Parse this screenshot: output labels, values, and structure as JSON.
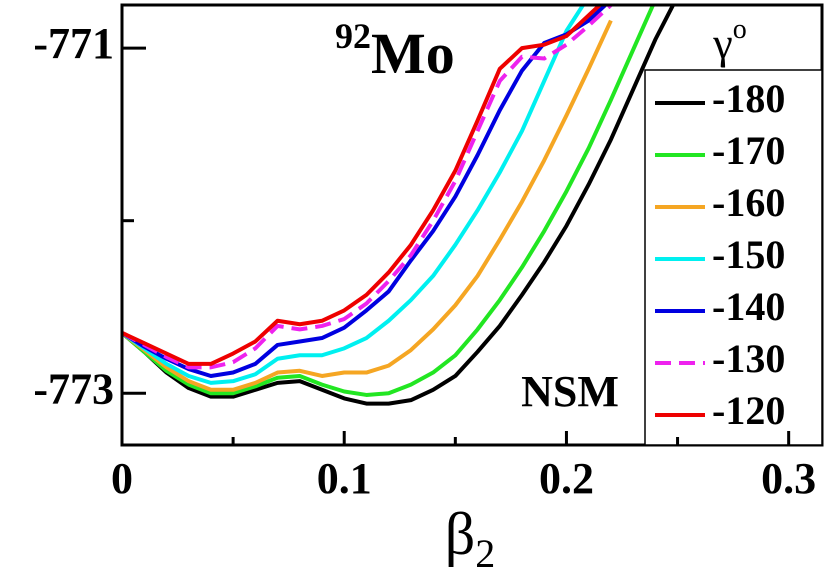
{
  "chart_data": {
    "type": "line",
    "xlabel": {
      "symbol": "β",
      "subscript": "2"
    },
    "legend_title": {
      "symbol": "γ",
      "superscript": "o"
    },
    "annotations": [
      {
        "mass": "92",
        "element": "Mo"
      },
      {
        "text": "NSM"
      }
    ],
    "x": [
      0,
      0.01,
      0.02,
      0.03,
      0.04,
      0.05,
      0.06,
      0.07,
      0.08,
      0.09,
      0.1,
      0.11,
      0.12,
      0.13,
      0.14,
      0.15,
      0.16,
      0.17,
      0.18,
      0.19,
      0.2,
      0.21,
      0.22,
      0.23,
      0.24,
      0.25
    ],
    "series": [
      {
        "name": "-180",
        "color": "#000000",
        "dash": false,
        "values": [
          -772.65,
          -772.76,
          -772.88,
          -772.97,
          -773.02,
          -773.02,
          -772.98,
          -772.94,
          -772.93,
          -772.98,
          -773.03,
          -773.06,
          -773.06,
          -773.04,
          -772.98,
          -772.9,
          -772.76,
          -772.61,
          -772.43,
          -772.24,
          -772.03,
          -771.79,
          -771.53,
          -771.24,
          -770.95,
          -770.7
        ]
      },
      {
        "name": "-170",
        "color": "#22e622",
        "dash": false,
        "values": [
          -772.65,
          -772.76,
          -772.87,
          -772.95,
          -773.0,
          -773.0,
          -772.96,
          -772.91,
          -772.9,
          -772.95,
          -772.99,
          -773.01,
          -773.0,
          -772.95,
          -772.88,
          -772.78,
          -772.63,
          -772.46,
          -772.27,
          -772.06,
          -771.83,
          -771.58,
          -771.3,
          -771.01,
          -770.72,
          null
        ]
      },
      {
        "name": "-160",
        "color": "#f5a623",
        "dash": false,
        "values": [
          -772.65,
          -772.75,
          -772.85,
          -772.93,
          -772.98,
          -772.98,
          -772.94,
          -772.88,
          -772.87,
          -772.9,
          -772.88,
          -772.88,
          -772.84,
          -772.75,
          -772.63,
          -772.49,
          -772.32,
          -772.11,
          -771.89,
          -771.65,
          -771.39,
          -771.12,
          -770.84,
          null,
          null,
          null
        ]
      },
      {
        "name": "-150",
        "color": "#00f0f0",
        "dash": false,
        "values": [
          -772.65,
          -772.74,
          -772.83,
          -772.9,
          -772.94,
          -772.93,
          -772.89,
          -772.8,
          -772.78,
          -772.78,
          -772.74,
          -772.68,
          -772.58,
          -772.46,
          -772.32,
          -772.14,
          -771.94,
          -771.72,
          -771.48,
          -771.19,
          -770.9,
          -770.7,
          null,
          null,
          null,
          null
        ]
      },
      {
        "name": "-140",
        "color": "#0000e0",
        "dash": false,
        "values": [
          -772.65,
          -772.73,
          -772.8,
          -772.86,
          -772.9,
          -772.88,
          -772.83,
          -772.72,
          -772.7,
          -772.68,
          -772.62,
          -772.52,
          -772.41,
          -772.23,
          -772.06,
          -771.86,
          -771.62,
          -771.36,
          -771.13,
          -770.97,
          -770.92,
          -770.84,
          -770.72,
          null,
          null,
          null
        ]
      },
      {
        "name": "-130",
        "color": "#ee22ee",
        "dash": true,
        "values": [
          -772.65,
          -772.72,
          -772.79,
          -772.85,
          -772.85,
          -772.82,
          -772.74,
          -772.61,
          -772.63,
          -772.61,
          -772.57,
          -772.48,
          -772.35,
          -772.2,
          -772.0,
          -771.77,
          -771.48,
          -771.19,
          -771.05,
          -771.06,
          -770.98,
          -770.87,
          -770.75,
          null,
          null,
          null
        ]
      },
      {
        "name": "-120",
        "color": "#ee0000",
        "dash": false,
        "values": [
          -772.65,
          -772.71,
          -772.77,
          -772.83,
          -772.83,
          -772.77,
          -772.7,
          -772.58,
          -772.6,
          -772.58,
          -772.52,
          -772.43,
          -772.3,
          -772.14,
          -771.94,
          -771.71,
          -771.42,
          -771.12,
          -771.0,
          -770.98,
          -770.93,
          -770.81,
          -770.69,
          null,
          null,
          null
        ]
      }
    ],
    "xlim": [
      0,
      0.315
    ],
    "ylim": [
      -773.3,
      -770.75
    ],
    "xticks": [
      0,
      0.1,
      0.2,
      0.3
    ],
    "yticks": [
      -773,
      -771
    ],
    "xminorticks": [
      0.05,
      0.15,
      0.25
    ],
    "yminorticks": [
      -772
    ],
    "legend": "right"
  }
}
